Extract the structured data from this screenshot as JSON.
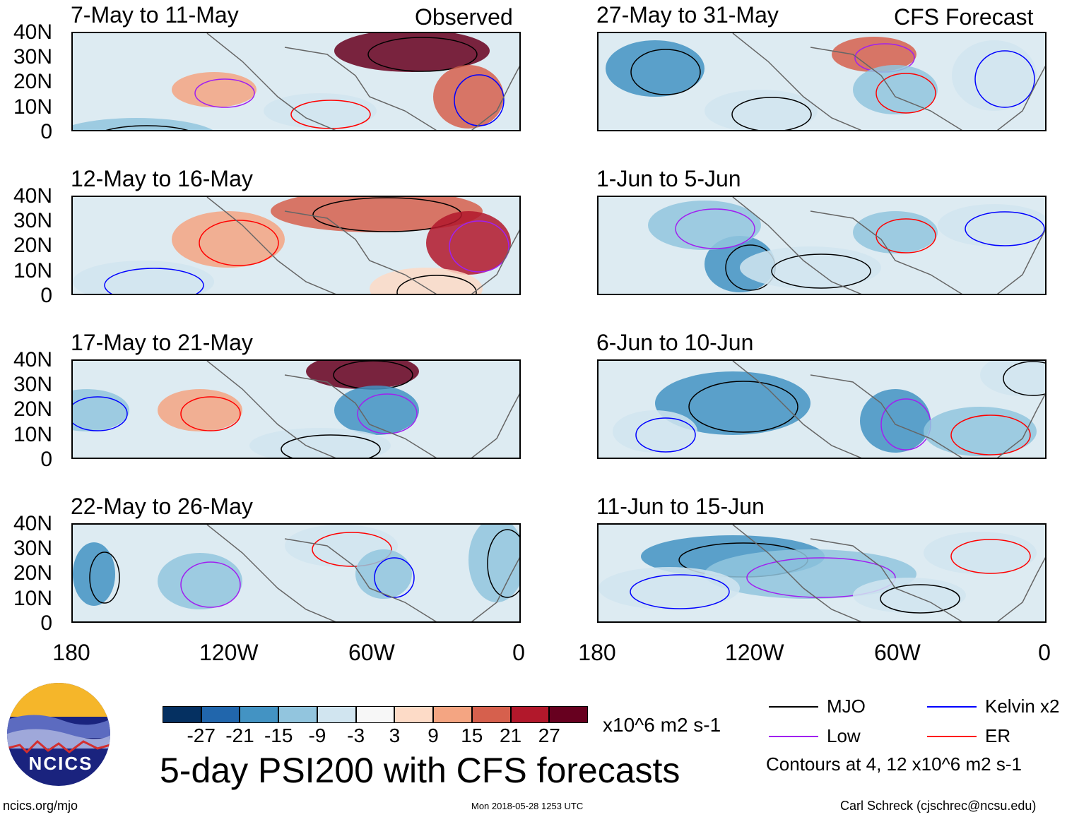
{
  "panels": {
    "observed_label": "Observed",
    "forecast_label": "CFS Forecast",
    "left": [
      "7-May to 11-May",
      "12-May to 16-May",
      "17-May to 21-May",
      "22-May to 26-May"
    ],
    "right": [
      "27-May to 31-May",
      "1-Jun to 5-Jun",
      "6-Jun to 10-Jun",
      "11-Jun to 15-Jun"
    ]
  },
  "lat_labels": [
    "40N",
    "30N",
    "20N",
    "10N",
    "0"
  ],
  "lon_labels": [
    "180",
    "120W",
    "60W",
    "0"
  ],
  "colorbar": {
    "colors": [
      "#053061",
      "#2166ac",
      "#4393c3",
      "#92c5de",
      "#d1e5f0",
      "#f7f7f7",
      "#fddbc7",
      "#f4a582",
      "#d6604d",
      "#b2182b",
      "#67001f"
    ],
    "ticks": [
      "-27",
      "-21",
      "-15",
      "-9",
      "-3",
      "3",
      "9",
      "15",
      "21",
      "27"
    ],
    "units": "x10^6 m2 s-1"
  },
  "title": "5-day PSI200 with CFS forecasts",
  "legend": {
    "items": [
      {
        "label": "MJO",
        "color": "#000000"
      },
      {
        "label": "Kelvin x2",
        "color": "#0000ff"
      },
      {
        "label": "Low",
        "color": "#a020f0"
      },
      {
        "label": "ER",
        "color": "#ff0000"
      }
    ],
    "contours": "Contours at 4, 12 x10^6 m2 s-1"
  },
  "logo_text": "NCICS",
  "footer": {
    "url": "ncics.org/mjo",
    "timestamp": "Mon 2018-05-28 1253 UTC",
    "author": "Carl Schreck (cjschrec@ncsu.edu)"
  }
}
